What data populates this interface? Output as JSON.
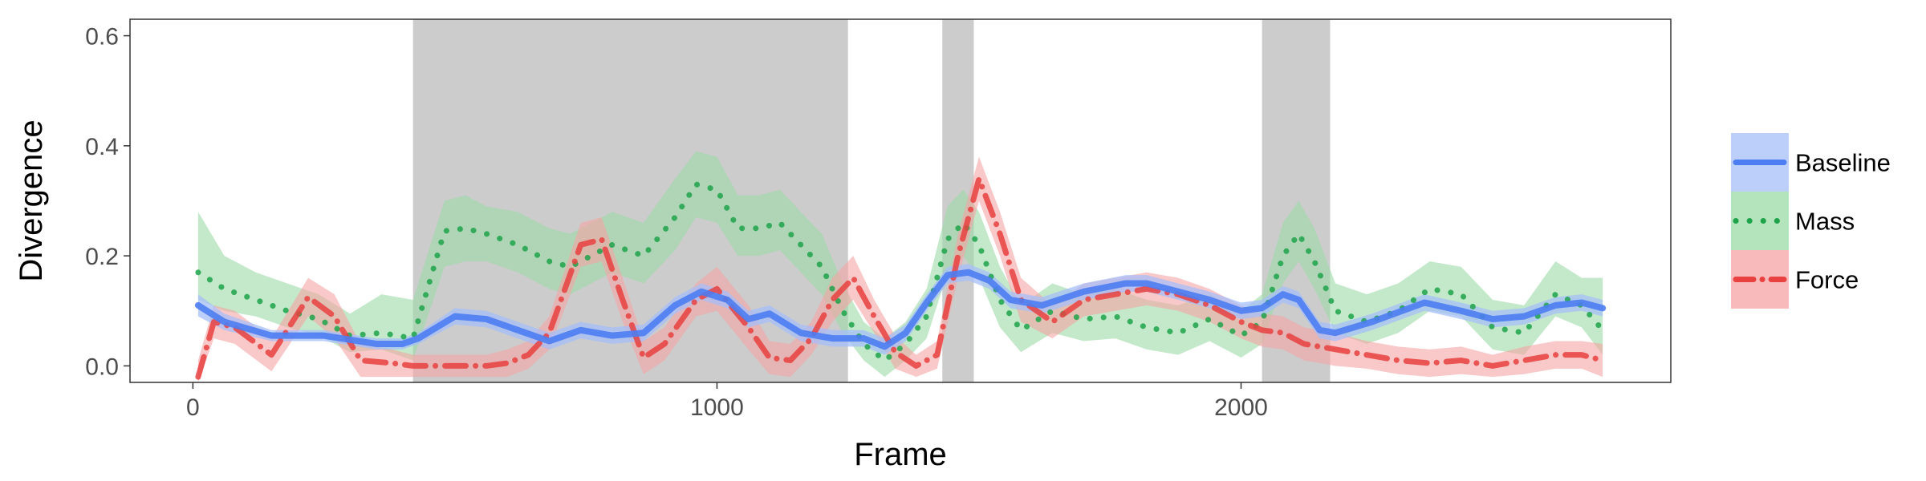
{
  "chart_data": {
    "type": "line",
    "title": "",
    "xlabel": "Frame",
    "ylabel": "Divergence",
    "xlim": [
      -120,
      2820
    ],
    "ylim": [
      -0.03,
      0.63
    ],
    "x_ticks": [
      0,
      1000,
      2000
    ],
    "x_tick_labels": [
      "0",
      "1000",
      "2000"
    ],
    "y_ticks": [
      0.0,
      0.2,
      0.4,
      0.6
    ],
    "y_tick_labels": [
      "0.0",
      "0.2",
      "0.4",
      "0.6"
    ],
    "grid": false,
    "legend_position": "right",
    "shaded_regions": [
      [
        420,
        1250
      ],
      [
        1430,
        1490
      ],
      [
        2040,
        2170
      ]
    ],
    "series": [
      {
        "name": "Baseline",
        "color": "#4c7df2",
        "band_color": "#a5bff8",
        "dash": "solid",
        "x": [
          10,
          60,
          150,
          250,
          350,
          400,
          430,
          500,
          560,
          620,
          680,
          740,
          800,
          860,
          920,
          970,
          1020,
          1060,
          1100,
          1160,
          1220,
          1280,
          1320,
          1360,
          1400,
          1440,
          1480,
          1520,
          1560,
          1620,
          1700,
          1780,
          1820,
          1880,
          1940,
          2000,
          2040,
          2080,
          2110,
          2150,
          2180,
          2250,
          2350,
          2420,
          2480,
          2540,
          2600,
          2650,
          2690
        ],
        "y": [
          0.11,
          0.08,
          0.055,
          0.055,
          0.04,
          0.04,
          0.05,
          0.09,
          0.085,
          0.065,
          0.045,
          0.065,
          0.055,
          0.06,
          0.11,
          0.135,
          0.12,
          0.085,
          0.095,
          0.06,
          0.05,
          0.05,
          0.035,
          0.06,
          0.115,
          0.165,
          0.17,
          0.155,
          0.12,
          0.11,
          0.135,
          0.15,
          0.15,
          0.135,
          0.12,
          0.1,
          0.105,
          0.13,
          0.12,
          0.065,
          0.06,
          0.08,
          0.115,
          0.1,
          0.085,
          0.09,
          0.11,
          0.115,
          0.105
        ],
        "lower": [
          0.09,
          0.065,
          0.045,
          0.045,
          0.03,
          0.03,
          0.04,
          0.075,
          0.07,
          0.05,
          0.03,
          0.05,
          0.04,
          0.045,
          0.095,
          0.12,
          0.105,
          0.07,
          0.08,
          0.045,
          0.035,
          0.035,
          0.02,
          0.045,
          0.1,
          0.15,
          0.155,
          0.14,
          0.105,
          0.095,
          0.12,
          0.135,
          0.135,
          0.12,
          0.105,
          0.085,
          0.09,
          0.115,
          0.105,
          0.05,
          0.045,
          0.065,
          0.1,
          0.085,
          0.07,
          0.075,
          0.095,
          0.1,
          0.09
        ],
        "upper": [
          0.13,
          0.095,
          0.065,
          0.065,
          0.05,
          0.05,
          0.06,
          0.105,
          0.1,
          0.08,
          0.06,
          0.08,
          0.07,
          0.075,
          0.125,
          0.15,
          0.135,
          0.1,
          0.11,
          0.075,
          0.065,
          0.065,
          0.05,
          0.075,
          0.13,
          0.18,
          0.185,
          0.17,
          0.135,
          0.125,
          0.15,
          0.165,
          0.165,
          0.15,
          0.135,
          0.115,
          0.12,
          0.145,
          0.135,
          0.08,
          0.075,
          0.095,
          0.13,
          0.115,
          0.1,
          0.105,
          0.125,
          0.13,
          0.12
        ]
      },
      {
        "name": "Mass",
        "color": "#1ea34a",
        "band_color": "#9bdba6",
        "dash": "dot",
        "x": [
          10,
          60,
          120,
          180,
          240,
          300,
          360,
          420,
          480,
          520,
          560,
          620,
          680,
          720,
          760,
          800,
          860,
          920,
          960,
          1000,
          1040,
          1080,
          1120,
          1160,
          1200,
          1240,
          1280,
          1320,
          1360,
          1400,
          1440,
          1470,
          1500,
          1540,
          1580,
          1640,
          1700,
          1760,
          1820,
          1880,
          1940,
          2000,
          2040,
          2080,
          2110,
          2140,
          2180,
          2240,
          2300,
          2360,
          2420,
          2480,
          2540,
          2600,
          2650,
          2690
        ],
        "y": [
          0.17,
          0.14,
          0.12,
          0.1,
          0.085,
          0.055,
          0.06,
          0.05,
          0.245,
          0.25,
          0.24,
          0.22,
          0.19,
          0.18,
          0.2,
          0.22,
          0.2,
          0.27,
          0.33,
          0.32,
          0.25,
          0.25,
          0.26,
          0.22,
          0.18,
          0.1,
          0.04,
          0.01,
          0.04,
          0.09,
          0.23,
          0.26,
          0.22,
          0.12,
          0.065,
          0.1,
          0.085,
          0.09,
          0.07,
          0.06,
          0.085,
          0.055,
          0.08,
          0.2,
          0.24,
          0.19,
          0.1,
          0.08,
          0.1,
          0.14,
          0.13,
          0.07,
          0.06,
          0.13,
          0.11,
          0.065
        ],
        "lower": [
          0.12,
          0.1,
          0.09,
          0.07,
          0.055,
          0.025,
          0.03,
          0.01,
          0.18,
          0.19,
          0.19,
          0.17,
          0.14,
          0.13,
          0.15,
          0.17,
          0.15,
          0.21,
          0.27,
          0.26,
          0.2,
          0.2,
          0.21,
          0.17,
          0.13,
          0.06,
          0.01,
          -0.02,
          0.01,
          0.05,
          0.17,
          0.2,
          0.16,
          0.07,
          0.025,
          0.06,
          0.045,
          0.05,
          0.03,
          0.02,
          0.045,
          0.015,
          0.04,
          0.15,
          0.19,
          0.14,
          0.06,
          0.04,
          0.06,
          0.1,
          0.09,
          0.03,
          0.02,
          0.09,
          0.07,
          0.02
        ],
        "upper": [
          0.28,
          0.2,
          0.17,
          0.15,
          0.13,
          0.095,
          0.13,
          0.12,
          0.3,
          0.31,
          0.29,
          0.28,
          0.25,
          0.24,
          0.26,
          0.28,
          0.26,
          0.34,
          0.39,
          0.38,
          0.31,
          0.31,
          0.32,
          0.28,
          0.24,
          0.15,
          0.08,
          0.05,
          0.08,
          0.14,
          0.29,
          0.32,
          0.28,
          0.18,
          0.11,
          0.15,
          0.13,
          0.14,
          0.12,
          0.11,
          0.13,
          0.1,
          0.13,
          0.26,
          0.3,
          0.25,
          0.15,
          0.13,
          0.15,
          0.19,
          0.18,
          0.12,
          0.11,
          0.19,
          0.16,
          0.16
        ]
      },
      {
        "name": "Force",
        "color": "#e8413f",
        "band_color": "#f5a3a3",
        "dash": "dashdot",
        "x": [
          10,
          40,
          80,
          150,
          220,
          270,
          320,
          380,
          420,
          500,
          560,
          600,
          640,
          680,
          740,
          780,
          820,
          860,
          900,
          960,
          1000,
          1060,
          1100,
          1140,
          1180,
          1220,
          1260,
          1300,
          1340,
          1380,
          1420,
          1460,
          1500,
          1540,
          1580,
          1640,
          1700,
          1760,
          1820,
          1880,
          1940,
          2000,
          2040,
          2080,
          2120,
          2180,
          2240,
          2300,
          2360,
          2420,
          2480,
          2540,
          2600,
          2650,
          2690
        ],
        "y": [
          -0.02,
          0.08,
          0.07,
          0.02,
          0.125,
          0.09,
          0.01,
          0.005,
          0.0,
          0.0,
          0.0,
          0.005,
          0.02,
          0.06,
          0.22,
          0.23,
          0.12,
          0.015,
          0.04,
          0.12,
          0.14,
          0.07,
          0.015,
          0.01,
          0.05,
          0.12,
          0.16,
          0.09,
          0.025,
          0.0,
          0.02,
          0.2,
          0.34,
          0.24,
          0.12,
          0.08,
          0.12,
          0.13,
          0.14,
          0.13,
          0.11,
          0.08,
          0.065,
          0.06,
          0.04,
          0.03,
          0.02,
          0.01,
          0.005,
          0.01,
          0.0,
          0.01,
          0.02,
          0.02,
          0.01
        ],
        "lower": [
          -0.05,
          0.05,
          0.04,
          -0.01,
          0.09,
          0.05,
          -0.02,
          -0.02,
          -0.02,
          -0.02,
          -0.02,
          -0.02,
          -0.005,
          0.03,
          0.18,
          0.19,
          0.08,
          -0.015,
          0.01,
          0.09,
          0.1,
          0.03,
          -0.015,
          -0.02,
          0.02,
          0.08,
          0.12,
          0.06,
          -0.005,
          -0.02,
          -0.005,
          0.16,
          0.3,
          0.2,
          0.08,
          0.05,
          0.09,
          0.1,
          0.11,
          0.1,
          0.08,
          0.05,
          0.035,
          0.03,
          0.01,
          0.0,
          -0.005,
          -0.015,
          -0.02,
          -0.015,
          -0.02,
          -0.015,
          -0.005,
          -0.005,
          -0.02
        ],
        "upper": [
          0.01,
          0.11,
          0.1,
          0.05,
          0.16,
          0.13,
          0.04,
          0.03,
          0.02,
          0.02,
          0.02,
          0.03,
          0.045,
          0.09,
          0.26,
          0.27,
          0.16,
          0.045,
          0.07,
          0.15,
          0.18,
          0.11,
          0.045,
          0.04,
          0.08,
          0.16,
          0.2,
          0.12,
          0.055,
          0.02,
          0.045,
          0.24,
          0.38,
          0.28,
          0.16,
          0.11,
          0.15,
          0.16,
          0.17,
          0.16,
          0.14,
          0.11,
          0.095,
          0.09,
          0.07,
          0.06,
          0.045,
          0.035,
          0.03,
          0.035,
          0.02,
          0.035,
          0.045,
          0.045,
          0.04
        ]
      }
    ]
  }
}
